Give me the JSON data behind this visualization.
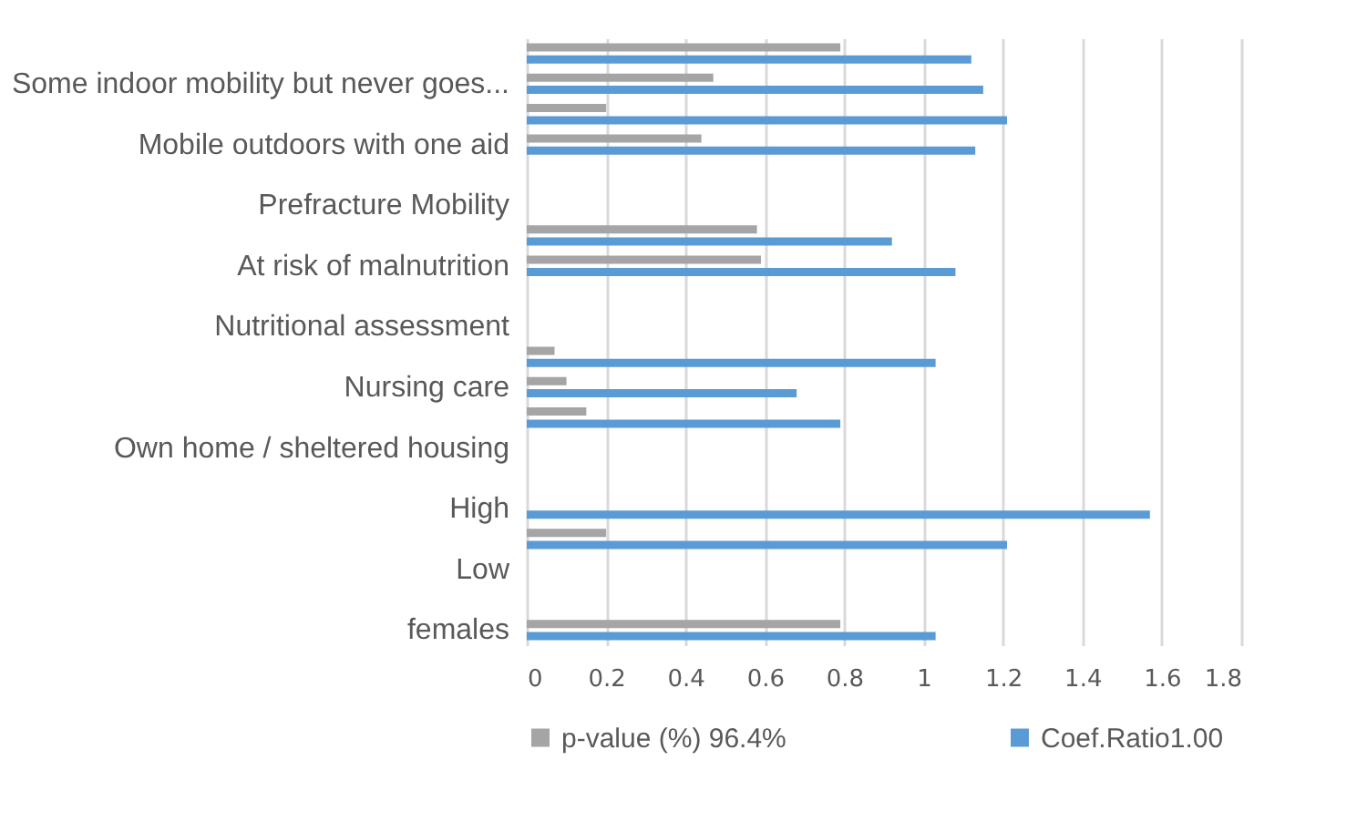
{
  "chart_data": {
    "type": "bar",
    "orientation": "horizontal",
    "categories": [
      null,
      "Some indoor mobility but never goes...",
      null,
      "Mobile outdoors with one aid",
      null,
      "Prefracture Mobility",
      null,
      "At risk of malnutrition",
      null,
      "Nutritional assessment",
      null,
      "Nursing care",
      null,
      "Own home / sheltered housing",
      null,
      "High",
      null,
      "Low",
      null,
      "females"
    ],
    "series": [
      {
        "name": "p-value (%) 96.4%",
        "color": "#a5a5a5",
        "values": [
          0.79,
          0.47,
          0.2,
          0.44,
          null,
          null,
          0.58,
          0.59,
          null,
          null,
          0.07,
          0.1,
          0.15,
          null,
          null,
          null,
          0.2,
          null,
          null,
          0.79
        ]
      },
      {
        "name": "Coef.Ratio1.00",
        "color": "#5b9bd5",
        "values": [
          1.12,
          1.15,
          1.21,
          1.13,
          null,
          null,
          0.92,
          1.08,
          null,
          null,
          1.03,
          0.68,
          0.79,
          null,
          null,
          1.57,
          1.21,
          null,
          null,
          1.03
        ]
      }
    ],
    "xlim": [
      0,
      1.8
    ],
    "xticks": [
      0,
      0.2,
      0.4,
      0.6,
      0.8,
      1,
      1.2,
      1.4,
      1.6,
      1.8
    ],
    "grid": "x",
    "legend": "bottom"
  }
}
